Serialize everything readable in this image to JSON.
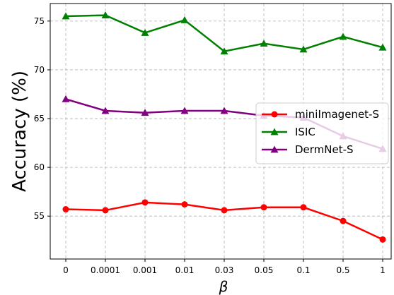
{
  "chart_data": {
    "type": "line",
    "xlabel": "β",
    "ylabel": "Accuracy (%)",
    "categories": [
      "0",
      "0.0001",
      "0.001",
      "0.01",
      "0.03",
      "0.05",
      "0.1",
      "0.5",
      "1"
    ],
    "yticks": [
      55,
      60,
      65,
      70,
      75
    ],
    "ylim": [
      50.6,
      76.8
    ],
    "grid": true,
    "legend_position": "center-right",
    "series": [
      {
        "name": "miniImagenet-S",
        "color": "#ff0000",
        "marker": "circle",
        "values": [
          55.7,
          55.6,
          56.4,
          56.2,
          55.6,
          55.9,
          55.9,
          54.5,
          52.6
        ]
      },
      {
        "name": "ISIC",
        "color": "#008000",
        "marker": "triangle",
        "values": [
          75.5,
          75.6,
          73.8,
          75.1,
          71.9,
          72.7,
          72.1,
          73.4,
          72.3
        ]
      },
      {
        "name": "DermNet-S",
        "color": "#800080",
        "marker": "triangle",
        "values": [
          67.0,
          65.8,
          65.6,
          65.8,
          65.8,
          65.3,
          65.1,
          63.2,
          61.9
        ]
      }
    ]
  }
}
